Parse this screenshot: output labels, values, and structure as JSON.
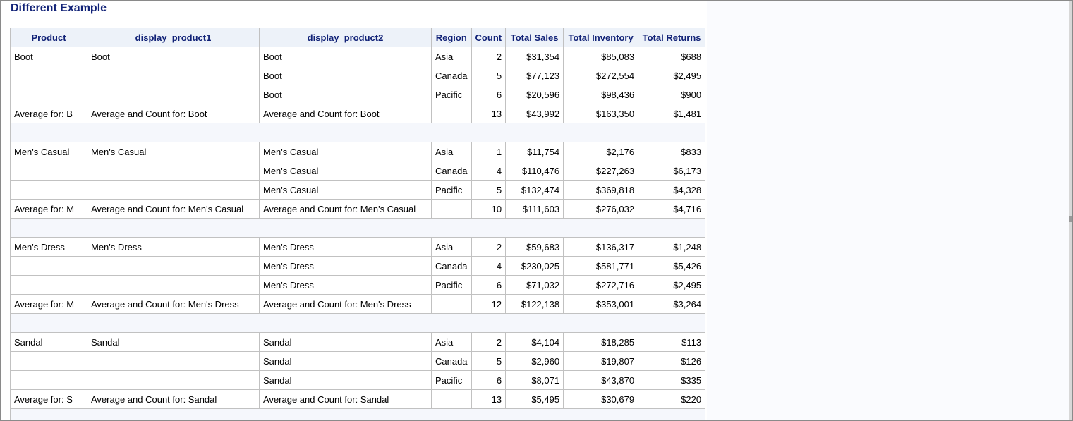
{
  "title": "Different Example",
  "colors": {
    "header_bg": "#edf2f9",
    "header_text": "#112277",
    "grid": "#c1c1c1",
    "spacer_bg": "#f5f7fc"
  },
  "columns": [
    "Product",
    "display_product1",
    "display_product2",
    "Region",
    "Count",
    "Total Sales",
    "Total Inventory",
    "Total Returns"
  ],
  "groups": [
    {
      "rows": [
        [
          "Boot",
          "Boot",
          "Boot",
          "Asia",
          "2",
          "$31,354",
          "$85,083",
          "$688"
        ],
        [
          "",
          "",
          "Boot",
          "Canada",
          "5",
          "$77,123",
          "$272,554",
          "$2,495"
        ],
        [
          "",
          "",
          "Boot",
          "Pacific",
          "6",
          "$20,596",
          "$98,436",
          "$900"
        ],
        [
          "Average for: B",
          "Average and Count for: Boot",
          "Average and Count for: Boot",
          "",
          "13",
          "$43,992",
          "$163,350",
          "$1,481"
        ]
      ]
    },
    {
      "rows": [
        [
          "Men's Casual",
          "Men's Casual",
          "Men's Casual",
          "Asia",
          "1",
          "$11,754",
          "$2,176",
          "$833"
        ],
        [
          "",
          "",
          "Men's Casual",
          "Canada",
          "4",
          "$110,476",
          "$227,263",
          "$6,173"
        ],
        [
          "",
          "",
          "Men's Casual",
          "Pacific",
          "5",
          "$132,474",
          "$369,818",
          "$4,328"
        ],
        [
          "Average for: M",
          "Average and Count for: Men's Casual",
          "Average and Count for: Men's Casual",
          "",
          "10",
          "$111,603",
          "$276,032",
          "$4,716"
        ]
      ]
    },
    {
      "rows": [
        [
          "Men's Dress",
          "Men's Dress",
          "Men's Dress",
          "Asia",
          "2",
          "$59,683",
          "$136,317",
          "$1,248"
        ],
        [
          "",
          "",
          "Men's Dress",
          "Canada",
          "4",
          "$230,025",
          "$581,771",
          "$5,426"
        ],
        [
          "",
          "",
          "Men's Dress",
          "Pacific",
          "6",
          "$71,032",
          "$272,716",
          "$2,495"
        ],
        [
          "Average for: M",
          "Average and Count for: Men's Dress",
          "Average and Count for: Men's Dress",
          "",
          "12",
          "$122,138",
          "$353,001",
          "$3,264"
        ]
      ]
    },
    {
      "rows": [
        [
          "Sandal",
          "Sandal",
          "Sandal",
          "Asia",
          "2",
          "$4,104",
          "$18,285",
          "$113"
        ],
        [
          "",
          "",
          "Sandal",
          "Canada",
          "5",
          "$2,960",
          "$19,807",
          "$126"
        ],
        [
          "",
          "",
          "Sandal",
          "Pacific",
          "6",
          "$8,071",
          "$43,870",
          "$335"
        ],
        [
          "Average for: S",
          "Average and Count for: Sandal",
          "Average and Count for: Sandal",
          "",
          "13",
          "$5,495",
          "$30,679",
          "$220"
        ]
      ]
    }
  ]
}
